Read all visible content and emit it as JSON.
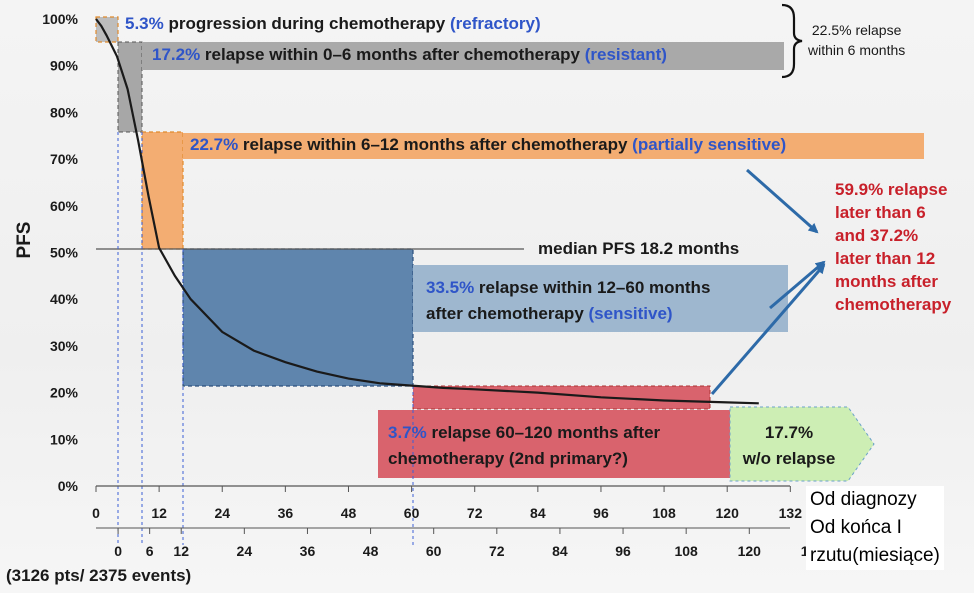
{
  "chart_data": {
    "type": "line",
    "ylabel": "PFS",
    "y_ticks": [
      "0%",
      "10%",
      "20%",
      "30%",
      "40%",
      "50%",
      "60%",
      "70%",
      "80%",
      "90%",
      "100%"
    ],
    "x_ticks_top": [
      "0",
      "12",
      "24",
      "36",
      "48",
      "60",
      "72",
      "84",
      "96",
      "108",
      "120",
      "132"
    ],
    "x_ticks_bottom": [
      "0",
      "6",
      "12",
      "24",
      "36",
      "48",
      "60",
      "72",
      "84",
      "96",
      "108",
      "120",
      "132"
    ],
    "ylim": [
      0,
      100
    ],
    "xlim": [
      0,
      132
    ],
    "series": [
      {
        "x": [
          0,
          1,
          2,
          4,
          6,
          8,
          10,
          12,
          15,
          18,
          24,
          30,
          36,
          42,
          48,
          54,
          60,
          66,
          72,
          84,
          96,
          108,
          120,
          126
        ],
        "y": [
          100,
          98.5,
          96.5,
          92,
          85,
          74,
          62,
          51,
          45,
          40,
          33,
          29,
          26.5,
          24.5,
          23,
          22,
          21.5,
          21,
          20.7,
          20,
          19,
          18.3,
          17.9,
          17.7
        ]
      }
    ],
    "median_label": "median PFS 18.2 months",
    "annotations": {
      "refractory": {
        "pct": "5.3%",
        "text": " progression during chemotherapy ",
        "tag": "(refractory)"
      },
      "resistant": {
        "pct": "17.2%",
        "text": " relapse within 0–6 months after chemotherapy ",
        "tag": "(resistant)"
      },
      "partially_sensitive": {
        "pct": "22.7%",
        "text": " relapse within 6–12 months after chemotherapy ",
        "tag": "(partially sensitive)"
      },
      "sensitive": {
        "pct": "33.5%",
        "line1": " relapse within 12–60 months",
        "line2a": "after chemotherapy ",
        "tag": "(sensitive)"
      },
      "second_primary": {
        "pct": "3.7%",
        "line1": " relapse 60–120 months after",
        "line2": "chemotherapy (2nd primary?)"
      },
      "without_relapse": {
        "line1": "17.7%",
        "line2": "w/o relapse"
      },
      "brace_note": {
        "line1": "22.5% relapse",
        "line2": "within 6 months"
      },
      "red_note": "59.9% relapse\nlater than 6\nand 37.2%\nlater than 12\nmonths after\nchemotherapy"
    },
    "right_legend": [
      "Od diagnozy",
      "Od końca I",
      "rzutu(miesiące)"
    ],
    "footer": "(3126 pts/ 2375 events)",
    "colors": {
      "gray_box": "#a7a7a7",
      "orange_box": "#f3ad72",
      "blue_box": "#5f85ad",
      "red_box": "#d9636d",
      "green_box": "#cdeeb4",
      "blue_text": "#2f55c8",
      "red_text": "#c8202a",
      "arrow": "#2d6aa8"
    }
  }
}
